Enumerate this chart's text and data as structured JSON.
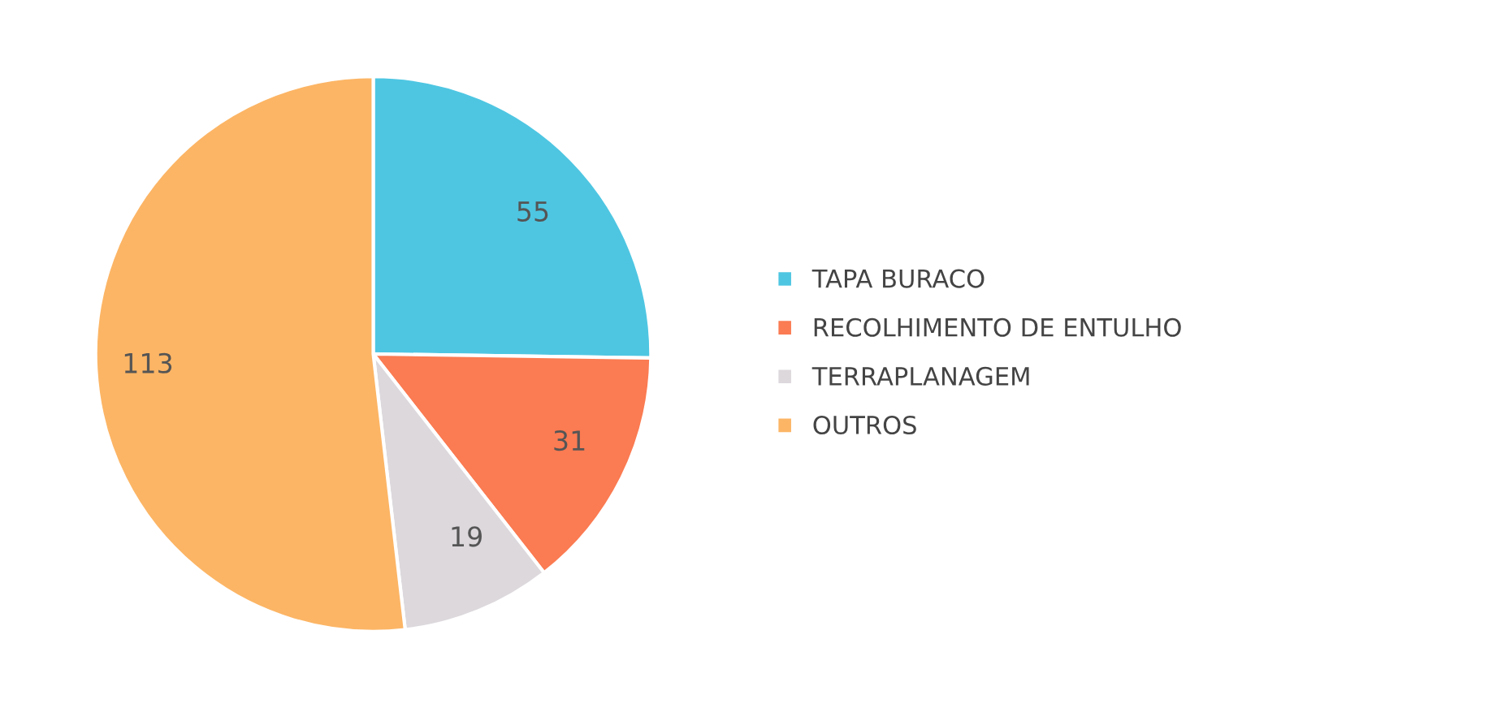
{
  "chart_data": {
    "type": "pie",
    "categories": [
      "TAPA BURACO",
      "RECOLHIMENTO DE ENTULHO",
      "TERRAPLANAGEM",
      "OUTROS"
    ],
    "values": [
      55,
      31,
      19,
      113
    ],
    "colors": [
      "#4ec6e2",
      "#fb7b52",
      "#dcd8dc",
      "#fcb565"
    ],
    "data_labels": true,
    "legend": "right"
  }
}
